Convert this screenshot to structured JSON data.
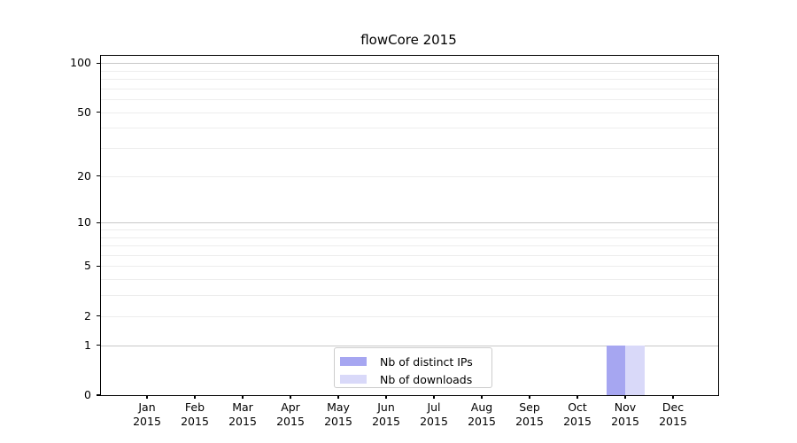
{
  "chart_data": {
    "type": "bar",
    "title": "flowCore 2015",
    "categories": [
      "Jan",
      "Feb",
      "Mar",
      "Apr",
      "May",
      "Jun",
      "Jul",
      "Aug",
      "Sep",
      "Oct",
      "Nov",
      "Dec"
    ],
    "year_label": "2015",
    "series": [
      {
        "name": "Nb of distinct IPs",
        "color": "#a6a6f1",
        "values": [
          0,
          0,
          0,
          0,
          0,
          0,
          0,
          0,
          0,
          0,
          1,
          0
        ]
      },
      {
        "name": "Nb of downloads",
        "color": "#d9d9f9",
        "values": [
          0,
          0,
          0,
          0,
          0,
          0,
          0,
          0,
          0,
          0,
          1,
          0
        ]
      }
    ],
    "yscale": "log10(1+y)",
    "ylim": [
      0,
      110
    ],
    "yticks": [
      0,
      1,
      2,
      5,
      10,
      20,
      50,
      100
    ],
    "minor_grid_values": [
      2,
      3,
      4,
      5,
      6,
      7,
      8,
      9,
      20,
      30,
      40,
      50,
      60,
      70,
      80,
      90
    ],
    "major_grid_values": [
      1,
      10,
      100
    ],
    "xlabel": "",
    "ylabel": "",
    "legend": {
      "position": "lower center",
      "entries": [
        "Nb of distinct IPs",
        "Nb of downloads"
      ]
    },
    "grid": "horizontal",
    "colors": {
      "major_grid": "#c8c8c8",
      "minor_grid": "#ededed",
      "spine": "#000000",
      "text": "#000000",
      "legend_border": "#cccccc",
      "background": "#ffffff"
    }
  }
}
